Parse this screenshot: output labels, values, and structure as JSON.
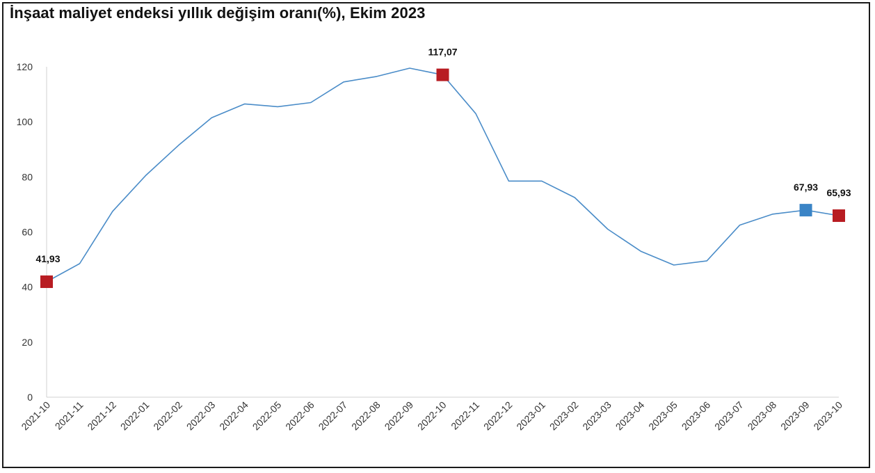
{
  "chart_data": {
    "type": "line",
    "title": "İnşaat maliyet endeksi yıllık değişim oranı(%), Ekim 2023",
    "xlabel": "",
    "ylabel": "",
    "ylim": [
      0,
      120
    ],
    "yticks": [
      0,
      20,
      40,
      60,
      80,
      100,
      120
    ],
    "grid": false,
    "legend": "none",
    "x": [
      "2021-10",
      "2021-11",
      "2021-12",
      "2022-01",
      "2022-02",
      "2022-03",
      "2022-04",
      "2022-05",
      "2022-06",
      "2022-07",
      "2022-08",
      "2022-09",
      "2022-10",
      "2022-11",
      "2022-12",
      "2023-01",
      "2023-02",
      "2023-03",
      "2023-04",
      "2023-05",
      "2023-06",
      "2023-07",
      "2023-08",
      "2023-09",
      "2023-10"
    ],
    "series": [
      {
        "color": "#4a8cc8",
        "values": [
          41.93,
          48.5,
          67.5,
          80.5,
          91.5,
          101.5,
          106.5,
          105.5,
          107.0,
          114.5,
          116.5,
          119.5,
          117.07,
          103.0,
          78.5,
          78.5,
          72.5,
          61.0,
          53.0,
          48.0,
          49.5,
          62.5,
          66.5,
          67.93,
          65.93
        ]
      }
    ],
    "markers": [
      {
        "x": "2021-10",
        "value": 41.93,
        "label": "41,93",
        "color": "#b81c22"
      },
      {
        "x": "2022-10",
        "value": 117.07,
        "label": "117,07",
        "color": "#b81c22"
      },
      {
        "x": "2023-09",
        "value": 67.93,
        "label": "67,93",
        "color": "#3a84c6"
      },
      {
        "x": "2023-10",
        "value": 65.93,
        "label": "65,93",
        "color": "#b81c22"
      }
    ]
  }
}
